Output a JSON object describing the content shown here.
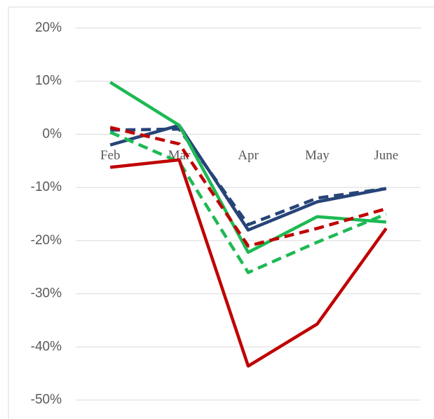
{
  "chart_data": {
    "type": "line",
    "categories": [
      "Feb",
      "Mar",
      "Apr",
      "May",
      "June"
    ],
    "series": [
      {
        "color": "#264478",
        "dashed": false,
        "values": [
          -2.0,
          1.7,
          -18.0,
          -12.7,
          -10.2
        ]
      },
      {
        "color": "#264478",
        "dashed": true,
        "values": [
          0.8,
          1.0,
          -17.0,
          -12.0,
          -10.2
        ]
      },
      {
        "color": "#1db954",
        "dashed": false,
        "values": [
          9.8,
          1.7,
          -22.2,
          -15.5,
          -16.5
        ]
      },
      {
        "color": "#1db954",
        "dashed": true,
        "values": [
          0.4,
          -5.2,
          -26.0,
          -20.3,
          -15.0
        ]
      },
      {
        "color": "#c00000",
        "dashed": false,
        "values": [
          -6.2,
          -4.8,
          -43.6,
          -35.7,
          -17.7
        ]
      },
      {
        "color": "#c00000",
        "dashed": true,
        "values": [
          1.3,
          -1.8,
          -21.0,
          -17.7,
          -14.0
        ]
      }
    ],
    "ylim": [
      -50,
      20
    ],
    "yticks": [
      {
        "value": 20,
        "label": "20%"
      },
      {
        "value": 10,
        "label": "10%"
      },
      {
        "value": 0,
        "label": "0%"
      },
      {
        "value": -10,
        "label": "-10%"
      },
      {
        "value": -20,
        "label": "-20%"
      },
      {
        "value": -30,
        "label": "-30%"
      },
      {
        "value": -40,
        "label": "-40%"
      },
      {
        "value": -50,
        "label": "-50%"
      }
    ],
    "grid": true
  }
}
